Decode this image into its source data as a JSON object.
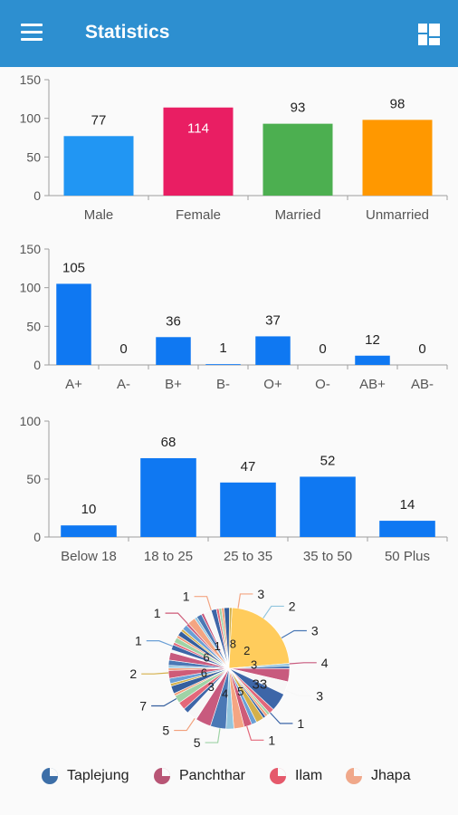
{
  "app": {
    "title": "Statistics"
  },
  "chart_data": [
    {
      "type": "bar",
      "categories": [
        "Male",
        "Female",
        "Married",
        "Unmarried"
      ],
      "values": [
        77,
        114,
        93,
        98
      ],
      "ylim": [
        0,
        150
      ],
      "yticks": [
        0,
        50,
        100,
        150
      ],
      "colors": [
        "#2196f3",
        "#e91e63",
        "#4caf50",
        "#ff9800"
      ],
      "grid": false
    },
    {
      "type": "bar",
      "categories": [
        "A+",
        "A-",
        "B+",
        "B-",
        "O+",
        "O-",
        "AB+",
        "AB-"
      ],
      "values": [
        105,
        0,
        36,
        1,
        37,
        0,
        12,
        0
      ],
      "ylim": [
        0,
        150
      ],
      "yticks": [
        0,
        50,
        100,
        150
      ],
      "colors": [
        "#0f78f2"
      ],
      "grid": false
    },
    {
      "type": "bar",
      "categories": [
        "Below 18",
        "18 to 25",
        "25 to 35",
        "35 to 50",
        "50 Plus"
      ],
      "values": [
        10,
        68,
        47,
        52,
        14
      ],
      "ylim": [
        0,
        100
      ],
      "yticks": [
        0,
        50,
        100
      ],
      "colors": [
        "#0f78f2"
      ],
      "grid": false
    },
    {
      "type": "pie",
      "values": [
        33,
        1,
        1,
        5,
        5,
        7,
        2,
        1,
        1,
        1,
        3,
        2,
        3,
        4,
        3,
        6,
        6,
        4,
        2,
        3,
        3,
        1,
        3,
        1,
        2,
        3,
        1,
        1,
        2,
        3,
        1,
        2,
        1,
        2,
        1,
        2,
        1,
        2,
        1,
        3,
        1,
        2,
        1,
        3,
        2,
        1,
        1,
        1,
        2,
        1
      ],
      "outer_labels": [
        "3",
        "2",
        "3",
        "4",
        "3",
        "1",
        "1",
        "5",
        "5",
        "7",
        "2",
        "1",
        "1",
        "1"
      ],
      "inner_labels": [
        "33",
        "5",
        "4",
        "3",
        "6",
        "6",
        "1",
        "8",
        "2",
        "3"
      ],
      "colors": [
        "#ffcc5c",
        "#f4a582",
        "#92c5de",
        "#4a78b5",
        "#c85a7e",
        "#f7f7f7",
        "#3d66a8",
        "#e3687a",
        "#9fd3a6",
        "#f2a07b",
        "#355f9e",
        "#d4b04a",
        "#6a9fd6",
        "#ce5b78"
      ],
      "legend": [
        {
          "label": "Taplejung",
          "color": "#3d6fa8"
        },
        {
          "label": "Panchthar",
          "color": "#b85575"
        },
        {
          "label": "Ilam",
          "color": "#e5596b"
        },
        {
          "label": "Jhapa",
          "color": "#f0a88a"
        }
      ]
    }
  ]
}
